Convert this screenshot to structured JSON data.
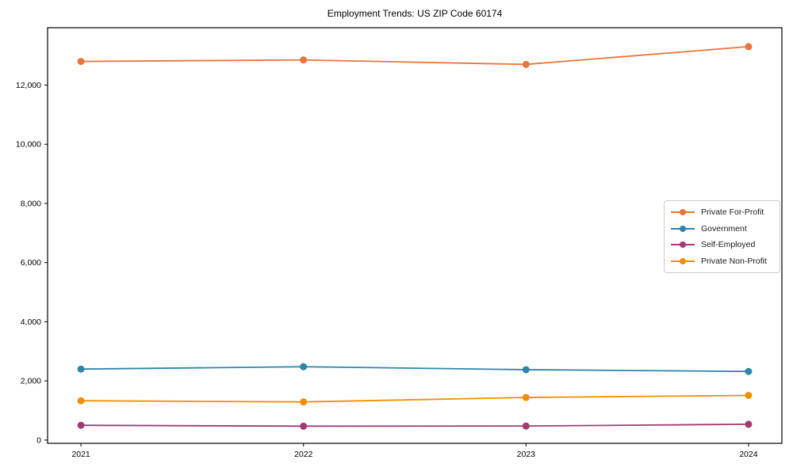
{
  "chart_data": {
    "type": "line",
    "title": "Employment Trends: US ZIP Code 60174",
    "xlabel": "",
    "ylabel": "",
    "x": [
      2021,
      2022,
      2023,
      2024
    ],
    "x_tick_labels": [
      "2021",
      "2022",
      "2023",
      "2024"
    ],
    "y_ticks": [
      0,
      2000,
      4000,
      6000,
      8000,
      10000,
      12000
    ],
    "y_tick_labels": [
      "0",
      "2,000",
      "4,000",
      "6,000",
      "8,000",
      "10,000",
      "12,000"
    ],
    "xlim": [
      2020.85,
      2024.15
    ],
    "ylim": [
      -110,
      13940
    ],
    "grid": false,
    "legend_position": "center right",
    "background_color": "#ffffff",
    "axis_color": "#000000",
    "series": [
      {
        "name": "Private For-Profit",
        "color": "#e8763c",
        "values": [
          12800,
          12850,
          12700,
          13300
        ]
      },
      {
        "name": "Government",
        "color": "#2e86ab",
        "values": [
          2400,
          2480,
          2380,
          2320
        ]
      },
      {
        "name": "Self-Employed",
        "color": "#a23b72",
        "values": [
          500,
          470,
          475,
          535
        ]
      },
      {
        "name": "Private Non-Profit",
        "color": "#f18f01",
        "values": [
          1330,
          1290,
          1440,
          1510
        ]
      }
    ]
  }
}
